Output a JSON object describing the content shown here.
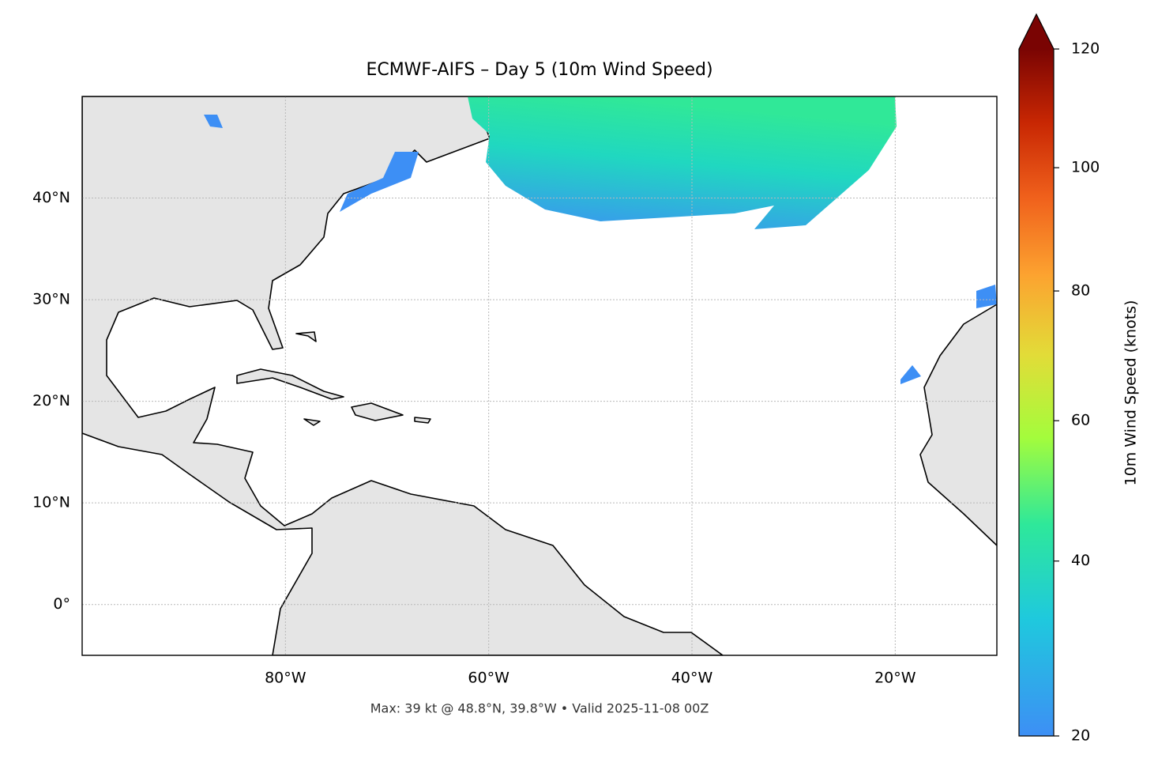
{
  "chart_data": {
    "type": "map",
    "title": "ECMWF-AIFS – Day 5 (10m Wind Speed)",
    "annotation": "Max: 39 kt @ 48.8°N, 39.8°W • Valid 2025-11-08 00Z",
    "xlim": [
      -100,
      -10
    ],
    "ylim": [
      -5,
      50
    ],
    "xticks": [
      {
        "value": -80,
        "label": "80°W"
      },
      {
        "value": -60,
        "label": "60°W"
      },
      {
        "value": -40,
        "label": "40°W"
      },
      {
        "value": -20,
        "label": "20°W"
      }
    ],
    "yticks": [
      {
        "value": 0,
        "label": "0°"
      },
      {
        "value": 10,
        "label": "10°N"
      },
      {
        "value": 20,
        "label": "20°N"
      },
      {
        "value": 30,
        "label": "30°N"
      },
      {
        "value": 40,
        "label": "40°N"
      }
    ],
    "grid": true,
    "colorbar": {
      "label": "10m Wind Speed (knots)",
      "lim": [
        20,
        120
      ],
      "ticks": [
        20,
        40,
        60,
        80,
        100,
        120
      ],
      "gamma": 0.85,
      "extend": "max",
      "colors": [
        "#3d8ff5",
        "#1fc9dd",
        "#2ee89a",
        "#a4fc3c",
        "#e2dc38",
        "#fca330",
        "#f0611c",
        "#c82703",
        "#7a0403"
      ]
    }
  }
}
